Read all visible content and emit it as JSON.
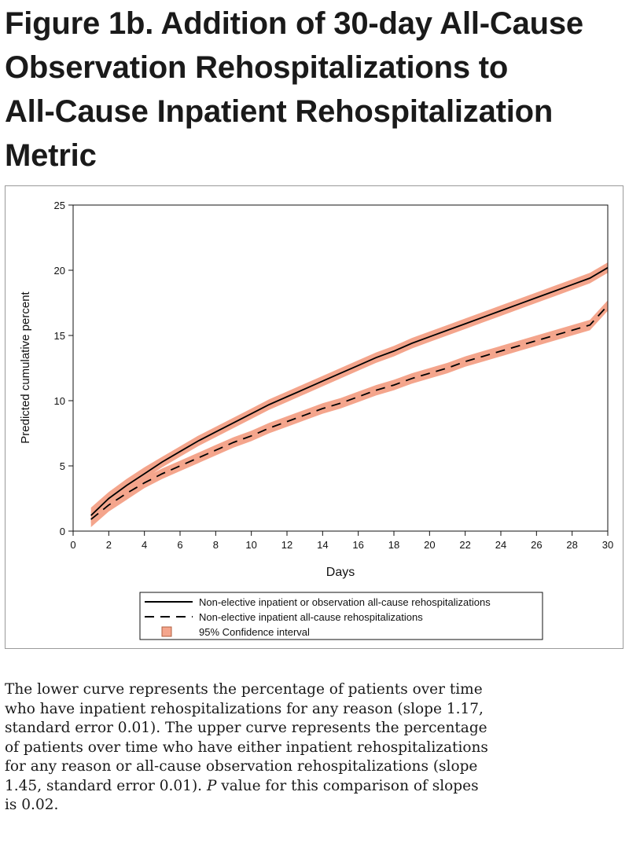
{
  "title_lines": [
    "Figure 1b. Addition of 30-day All-Cause",
    "Observation Rehospitalizations to",
    "All-Cause Inpatient Rehospitalization",
    "Metric"
  ],
  "caption_lines": [
    "The lower curve represents the percentage of patients over time",
    "who have inpatient rehospitalizations for any reason (slope 1.17,",
    "standard error 0.01). The upper curve represents the percentage",
    "of patients over time who have either inpatient rehospitalizations",
    "for any reason or all-cause observation rehospitalizations  (slope",
    "1.45, standard error 0.01). ",
    " value for this comparison of slopes",
    "is 0.02."
  ],
  "caption_italic": "P",
  "colors": {
    "ci_fill": "#f4a58c",
    "line": "#000000",
    "frame": "#9a9a9a"
  },
  "chart_data": {
    "type": "line",
    "xlabel": "Days",
    "ylabel": "Predicted cumulative percent",
    "xlim": [
      0,
      30
    ],
    "ylim": [
      0,
      25
    ],
    "xticks": [
      0,
      2,
      4,
      6,
      8,
      10,
      12,
      14,
      16,
      18,
      20,
      22,
      24,
      26,
      28,
      30
    ],
    "yticks": [
      0,
      5,
      10,
      15,
      20,
      25
    ],
    "x": [
      1,
      2,
      3,
      4,
      5,
      6,
      7,
      8,
      9,
      10,
      11,
      12,
      13,
      14,
      15,
      16,
      17,
      18,
      19,
      20,
      21,
      22,
      23,
      24,
      25,
      26,
      27,
      28,
      29,
      30
    ],
    "series": [
      {
        "name": "Non-elective inpatient or observation all-cause rehospitalizations",
        "style": "solid",
        "values": [
          1.2,
          2.5,
          3.5,
          4.4,
          5.3,
          6.1,
          6.9,
          7.6,
          8.3,
          9.0,
          9.7,
          10.3,
          10.9,
          11.5,
          12.1,
          12.7,
          13.3,
          13.8,
          14.4,
          14.9,
          15.4,
          15.9,
          16.4,
          16.9,
          17.4,
          17.9,
          18.4,
          18.9,
          19.4,
          20.2
        ],
        "ci_lower": [
          0.6,
          2.0,
          3.0,
          4.0,
          4.9,
          5.7,
          6.5,
          7.2,
          7.9,
          8.6,
          9.3,
          9.9,
          10.5,
          11.1,
          11.7,
          12.3,
          12.9,
          13.4,
          14.0,
          14.5,
          15.0,
          15.5,
          16.0,
          16.5,
          17.0,
          17.5,
          18.0,
          18.5,
          19.0,
          19.8
        ],
        "ci_upper": [
          1.8,
          3.0,
          4.0,
          4.9,
          5.7,
          6.5,
          7.3,
          8.0,
          8.7,
          9.4,
          10.1,
          10.7,
          11.3,
          11.9,
          12.5,
          13.1,
          13.7,
          14.2,
          14.8,
          15.3,
          15.8,
          16.3,
          16.8,
          17.3,
          17.8,
          18.3,
          18.8,
          19.3,
          19.8,
          20.6
        ]
      },
      {
        "name": "Non-elective inpatient all-cause rehospitalizations",
        "style": "dashed",
        "values": [
          0.9,
          2.0,
          2.9,
          3.7,
          4.4,
          5.0,
          5.6,
          6.2,
          6.8,
          7.3,
          7.9,
          8.4,
          8.9,
          9.4,
          9.8,
          10.3,
          10.8,
          11.2,
          11.7,
          12.1,
          12.5,
          13.0,
          13.4,
          13.8,
          14.2,
          14.6,
          15.0,
          15.4,
          15.8,
          17.3
        ],
        "ci_lower": [
          0.3,
          1.5,
          2.4,
          3.3,
          4.0,
          4.6,
          5.2,
          5.8,
          6.4,
          6.9,
          7.5,
          8.0,
          8.5,
          9.0,
          9.4,
          9.9,
          10.4,
          10.8,
          11.3,
          11.7,
          12.1,
          12.6,
          13.0,
          13.4,
          13.8,
          14.2,
          14.6,
          15.0,
          15.4,
          16.9
        ],
        "ci_upper": [
          1.5,
          2.5,
          3.4,
          4.1,
          4.8,
          5.4,
          6.0,
          6.6,
          7.2,
          7.7,
          8.3,
          8.8,
          9.3,
          9.8,
          10.2,
          10.7,
          11.2,
          11.6,
          12.1,
          12.5,
          12.9,
          13.4,
          13.8,
          14.2,
          14.6,
          15.0,
          15.4,
          15.8,
          16.2,
          17.7
        ]
      }
    ],
    "legend": {
      "placement": "bottom",
      "entries": [
        "Non-elective inpatient or observation all-cause rehospitalizations",
        "Non-elective inpatient all-cause rehospitalizations",
        "95% Confidence interval"
      ]
    },
    "grid": false
  }
}
